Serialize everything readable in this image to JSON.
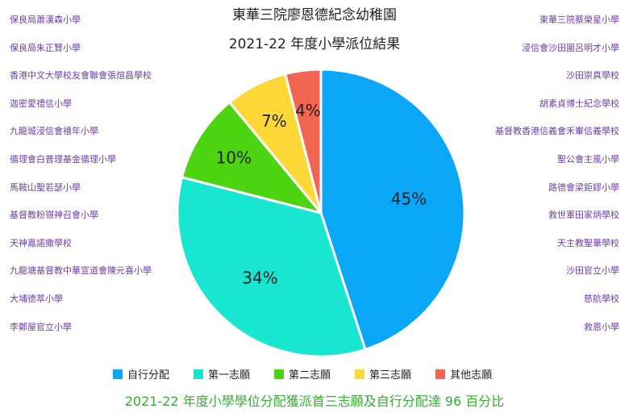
{
  "title_lines": [
    "東華三院廖恩德紀念幼稚園",
    "2021-22 年度小學派位結果"
  ],
  "left_schools": [
    "保良局蕭漢森小學",
    "保良局朱正賢小學",
    "香港中文大學校友會聯會張煊昌學校",
    "迦密愛禮信小學",
    "九龍城浸信會禧年小學",
    "循理會白普理基金循理小學",
    "馬鞍山聖若瑟小學",
    "基督教粉嶺神召會小學",
    "天神嘉諾撒學校",
    "九龍塘基督教中華宣道會陳元喜小學",
    "大埔德萃小學",
    "李鄭屋官立小學"
  ],
  "right_schools": [
    "東華三院蔡榮星小學",
    "浸信會沙田圍呂明才小學",
    "沙田崇真學校",
    "胡素貞博士紀念學校",
    "基督教香港信義會禾輋信義學校",
    "聖公會主風小學",
    "路德會梁鉅鏐小學",
    "救世軍田家炳學校",
    "天主教聖華學校",
    "沙田官立小學",
    "慈航學校",
    "救恩小學"
  ],
  "legend": [
    {
      "label": "自行分配",
      "color": "#0aa7f7"
    },
    {
      "label": "第一志願",
      "color": "#19e6d0"
    },
    {
      "label": "第二志願",
      "color": "#4dd411"
    },
    {
      "label": "第三志願",
      "color": "#fdd836"
    },
    {
      "label": "其他志願",
      "color": "#f26551"
    }
  ],
  "footer": "2021-22 年度小學學位分配獲派首三志願及自行分配達 96 百分比",
  "chart_data": {
    "type": "pie",
    "title": "2021-22 年度小學派位結果",
    "categories": [
      "自行分配",
      "第一志願",
      "第二志願",
      "第三志願",
      "其他志願"
    ],
    "values": [
      45,
      34,
      10,
      7,
      4
    ],
    "labels": [
      "45%",
      "34%",
      "10%",
      "7%",
      "4%"
    ],
    "colors": [
      "#0aa7f7",
      "#19e6d0",
      "#4dd411",
      "#fdd836",
      "#f26551"
    ],
    "start_angle_deg": 0,
    "direction": "clockwise",
    "legend_position": "bottom"
  }
}
